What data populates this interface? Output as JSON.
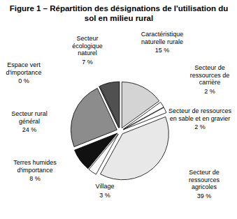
{
  "chart_data": {
    "type": "pie",
    "title": "Figure 1 – Répartition des désignations de l'utilisation du sol en milieu rural",
    "categories": [
      "Caractéristique naturelle rurale",
      "Secteur de ressources de carrière",
      "Secteur de ressources en sable et en gravier",
      "Secteur de ressources agricoles",
      "Village",
      "Terres humides d'importance",
      "Secteur rural général",
      "Espace vert d'importance",
      "Secteur écologique naturel"
    ],
    "values": [
      15,
      2,
      2,
      39,
      3,
      8,
      24,
      0,
      7
    ],
    "value_labels": [
      "15 %",
      "2 %",
      "2 %",
      "39 %",
      "3 %",
      "8 %",
      "24 %",
      "0 %",
      "7 %"
    ],
    "colors": [
      "#d4d4d4",
      "#ffffff",
      "#ffffff",
      "#e8e8e8",
      "#ffffff",
      "#111111",
      "#8c8c8c",
      "#ffffff",
      "#505050"
    ],
    "data_labels": true
  }
}
